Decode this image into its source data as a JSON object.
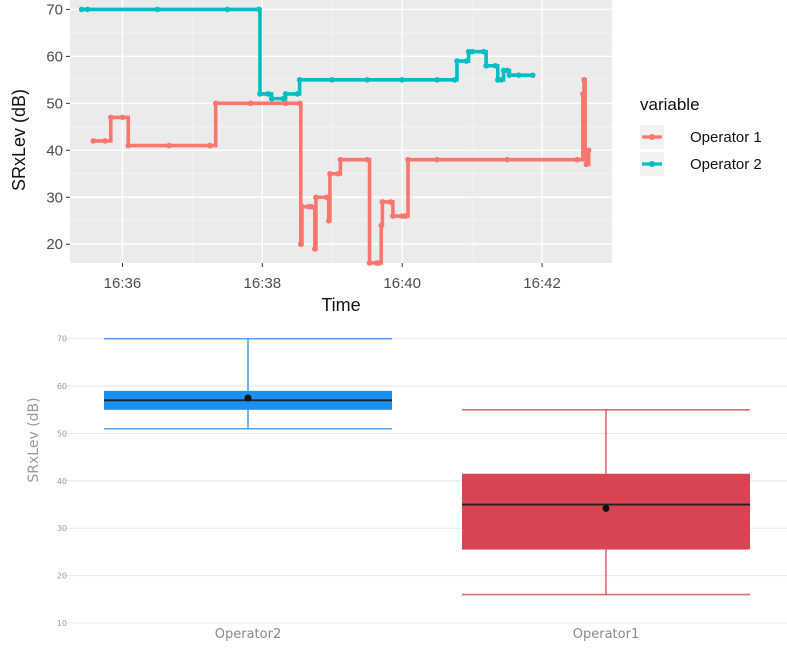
{
  "chart_data": [
    {
      "type": "line",
      "title": "",
      "xlabel": "Time",
      "ylabel": "SRxLev (dB)",
      "x_ticks": [
        "16:36",
        "16:38",
        "16:40",
        "16:42"
      ],
      "y_ticks": [
        20,
        30,
        40,
        50,
        60,
        70
      ],
      "xlim": [
        "16:35:15",
        "16:43:00"
      ],
      "ylim": [
        16,
        72
      ],
      "grid": true,
      "panel_background": "#ebebeb",
      "legend": {
        "title": "variable",
        "position": "right"
      },
      "series": [
        {
          "name": "Operator 1",
          "color": "#f8766d",
          "points": [
            [
              "16:35:35",
              42
            ],
            [
              "16:35:45",
              42
            ],
            [
              "16:35:50",
              47
            ],
            [
              "16:36:00",
              47
            ],
            [
              "16:36:05",
              41
            ],
            [
              "16:36:40",
              41
            ],
            [
              "16:37:15",
              41
            ],
            [
              "16:37:20",
              50
            ],
            [
              "16:37:50",
              50
            ],
            [
              "16:38:20",
              50
            ],
            [
              "16:38:32",
              50
            ],
            [
              "16:38:33",
              20
            ],
            [
              "16:38:34",
              28
            ],
            [
              "16:38:40",
              28
            ],
            [
              "16:38:42",
              28
            ],
            [
              "16:38:45",
              19
            ],
            [
              "16:38:46",
              30
            ],
            [
              "16:38:55",
              30
            ],
            [
              "16:38:57",
              25
            ],
            [
              "16:38:58",
              35
            ],
            [
              "16:39:05",
              35
            ],
            [
              "16:39:07",
              38
            ],
            [
              "16:39:30",
              38
            ],
            [
              "16:39:32",
              16
            ],
            [
              "16:39:38",
              16
            ],
            [
              "16:39:40",
              16
            ],
            [
              "16:39:42",
              24
            ],
            [
              "16:39:43",
              29
            ],
            [
              "16:39:50",
              29
            ],
            [
              "16:39:52",
              26
            ],
            [
              "16:40:00",
              26
            ],
            [
              "16:40:03",
              26
            ],
            [
              "16:40:05",
              38
            ],
            [
              "16:40:30",
              38
            ],
            [
              "16:41:30",
              38
            ],
            [
              "16:42:30",
              38
            ],
            [
              "16:42:35",
              52
            ],
            [
              "16:42:36",
              55
            ],
            [
              "16:42:37",
              40
            ],
            [
              "16:42:38",
              37
            ],
            [
              "16:42:40",
              40
            ]
          ]
        },
        {
          "name": "Operator 2",
          "color": "#00bfc4",
          "points": [
            [
              "16:35:25",
              70
            ],
            [
              "16:35:30",
              70
            ],
            [
              "16:36:30",
              70
            ],
            [
              "16:37:30",
              70
            ],
            [
              "16:37:57",
              70
            ],
            [
              "16:37:58",
              52
            ],
            [
              "16:38:05",
              52
            ],
            [
              "16:38:08",
              51
            ],
            [
              "16:38:18",
              51
            ],
            [
              "16:38:20",
              52
            ],
            [
              "16:38:30",
              52
            ],
            [
              "16:38:32",
              55
            ],
            [
              "16:39:00",
              55
            ],
            [
              "16:39:30",
              55
            ],
            [
              "16:40:00",
              55
            ],
            [
              "16:40:30",
              55
            ],
            [
              "16:40:45",
              55
            ],
            [
              "16:40:47",
              59
            ],
            [
              "16:40:55",
              59
            ],
            [
              "16:40:57",
              61
            ],
            [
              "16:41:00",
              61
            ],
            [
              "16:41:10",
              61
            ],
            [
              "16:41:12",
              58
            ],
            [
              "16:41:20",
              58
            ],
            [
              "16:41:22",
              55
            ],
            [
              "16:41:25",
              55
            ],
            [
              "16:41:27",
              57
            ],
            [
              "16:41:30",
              57
            ],
            [
              "16:41:32",
              56
            ],
            [
              "16:41:40",
              56
            ],
            [
              "16:41:52",
              56
            ]
          ]
        }
      ]
    },
    {
      "type": "boxplot",
      "title": "",
      "xlabel": "",
      "ylabel": "SRxLev (dB)",
      "y_ticks": [
        10,
        20,
        30,
        40,
        50,
        60,
        70
      ],
      "ylim": [
        10,
        71
      ],
      "grid": true,
      "categories": [
        "Operator2",
        "Operator1"
      ],
      "boxes": [
        {
          "category": "Operator2",
          "min": 51,
          "q1": 55,
          "median": 57,
          "q3": 59,
          "max": 70,
          "mean": 57.5,
          "color": "#1f8ef1"
        },
        {
          "category": "Operator1",
          "min": 16,
          "q1": 25.5,
          "median": 35,
          "q3": 41.5,
          "max": 55,
          "mean": 34.2,
          "color": "#d94452"
        }
      ]
    }
  ]
}
